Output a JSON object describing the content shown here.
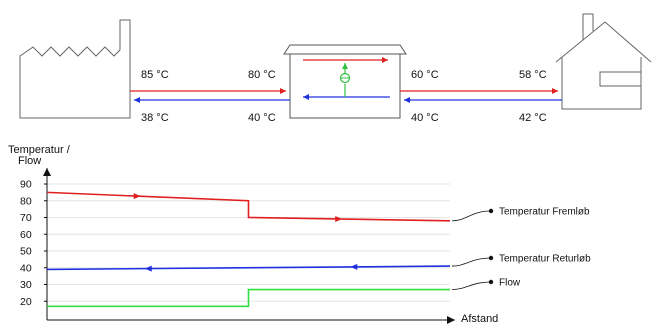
{
  "diagram": {
    "temps": {
      "plant_supply": "85 °C",
      "plant_return": "38 °C",
      "station_primary_supply": "80 °C",
      "station_primary_return": "40 °C",
      "station_secondary_supply": "60 °C",
      "station_secondary_return": "40 °C",
      "house_supply": "58 °C",
      "house_return": "42 °C"
    },
    "icons": [
      "factory-icon",
      "heat-exchanger-station-icon",
      "pump-icon",
      "house-icon"
    ]
  },
  "chart_data": {
    "type": "line",
    "ylabel": "Temperatur /\nFlow",
    "ylabel_lines": [
      "Temperatur /",
      "Flow"
    ],
    "xlabel": "Afstand",
    "yticks": [
      20,
      30,
      40,
      50,
      60,
      70,
      80,
      90
    ],
    "ylim": [
      10,
      95
    ],
    "xlim": [
      0,
      100
    ],
    "grid": true,
    "legend_placement": "right",
    "series": [
      {
        "name": "Temperatur Fremløb",
        "color": "#e02020",
        "points": [
          [
            0,
            85
          ],
          [
            50,
            80
          ],
          [
            50,
            70
          ],
          [
            100,
            68
          ]
        ]
      },
      {
        "name": "Temperatur Returløb",
        "color": "#2030e0",
        "points": [
          [
            0,
            39
          ],
          [
            100,
            41
          ]
        ]
      },
      {
        "name": "Flow",
        "color": "#30e040",
        "points": [
          [
            0,
            17
          ],
          [
            50,
            17
          ],
          [
            50,
            27
          ],
          [
            100,
            27
          ]
        ]
      }
    ]
  }
}
